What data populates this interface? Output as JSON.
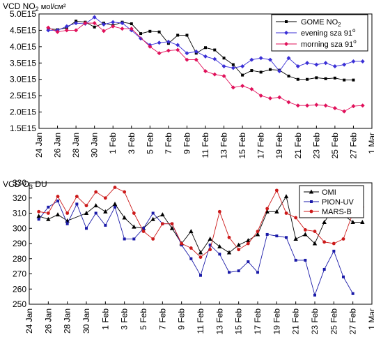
{
  "chart_data": [
    {
      "type": "line",
      "title_pre": "VCD NO",
      "title_sub": "2",
      "title_post": " мol/cм²",
      "ylim": [
        1.5,
        5.0
      ],
      "yticks": [
        "1.5E15",
        "2.0E15",
        "2.5E15",
        "3.0E15",
        "3.5E15",
        "4.0E15",
        "4.5E15",
        "5.0E15"
      ],
      "xlim": [
        0,
        36
      ],
      "xtick_labels": [
        "24 Jan",
        "26 Jan",
        "28 Jan",
        "30 Jan",
        "1 Feb",
        "3 Feb",
        "5 Feb",
        "7 Feb",
        "9 Feb",
        "11 Feb",
        "13 Feb",
        "15 Feb",
        "17 Feb",
        "19 Feb",
        "21 Feb",
        "23 Feb",
        "25 Feb",
        "27 Feb",
        "1 Mar"
      ],
      "legend_position": "top-right",
      "legend": [
        {
          "pre": "GOME NO",
          "sub": "2",
          "post": ""
        },
        {
          "pre": "evening sza 91",
          "sup": "o",
          "post": ""
        },
        {
          "pre": "morning sza 91",
          "sup": "o",
          "post": ""
        }
      ],
      "series": [
        {
          "color": "#000000",
          "marker": "square",
          "x": [
            1,
            2,
            3,
            4,
            5,
            6,
            7,
            8,
            9,
            10,
            11,
            12,
            13,
            14,
            15,
            16,
            17,
            18,
            19,
            20,
            21,
            22,
            23,
            24,
            25,
            26,
            27,
            28,
            29,
            30,
            31,
            32,
            33,
            34
          ],
          "values": [
            4.55,
            4.52,
            4.58,
            4.78,
            4.75,
            4.6,
            4.72,
            4.65,
            4.75,
            4.7,
            4.4,
            4.47,
            4.45,
            4.1,
            4.35,
            4.35,
            3.8,
            3.97,
            3.9,
            3.65,
            3.45,
            3.13,
            3.27,
            3.22,
            3.3,
            3.28,
            3.1,
            3.0,
            3.0,
            3.05,
            3.02,
            3.04,
            2.98,
            2.98
          ]
        },
        {
          "color": "#3a2fd6",
          "marker": "diamond",
          "x": [
            1,
            2,
            3,
            4,
            5,
            6,
            7,
            8,
            9,
            10,
            11,
            12,
            13,
            14,
            15,
            16,
            17,
            18,
            19,
            20,
            21,
            22,
            23,
            24,
            25,
            26,
            27,
            28,
            29,
            30,
            31,
            32,
            33,
            34,
            35
          ],
          "values": [
            4.5,
            4.5,
            4.62,
            4.72,
            4.7,
            4.9,
            4.68,
            4.75,
            4.72,
            4.5,
            4.25,
            4.05,
            4.12,
            4.15,
            4.05,
            3.8,
            3.85,
            3.7,
            3.62,
            3.4,
            3.35,
            3.4,
            3.6,
            3.65,
            3.6,
            3.25,
            3.65,
            3.4,
            3.5,
            3.45,
            3.5,
            3.4,
            3.45,
            3.55,
            3.55
          ]
        },
        {
          "color": "#e0105a",
          "marker": "diamond",
          "x": [
            1,
            2,
            3,
            4,
            5,
            6,
            7,
            8,
            9,
            10,
            12,
            13,
            14,
            15,
            16,
            17,
            18,
            19,
            20,
            21,
            22,
            23,
            24,
            25,
            26,
            27,
            28,
            29,
            30,
            31,
            32,
            33,
            34,
            35
          ],
          "values": [
            4.58,
            4.45,
            4.5,
            4.5,
            4.72,
            4.72,
            4.48,
            4.62,
            4.55,
            4.55,
            4.0,
            3.8,
            3.88,
            3.9,
            3.6,
            3.6,
            3.25,
            3.15,
            3.1,
            2.75,
            2.8,
            2.7,
            2.5,
            2.42,
            2.45,
            2.3,
            2.2,
            2.2,
            2.22,
            2.2,
            2.12,
            2.02,
            2.18,
            2.2
          ]
        }
      ]
    },
    {
      "type": "line",
      "title_pre": "VCD O",
      "title_sub": "3",
      "title_post": " DU",
      "ylim": [
        250,
        330
      ],
      "yticks": [
        "250",
        "260",
        "270",
        "280",
        "290",
        "300",
        "310",
        "320",
        "330"
      ],
      "xlim": [
        0,
        36
      ],
      "xtick_labels": [
        "24 Jan",
        "26 Jan",
        "28 Jan",
        "30 Jan",
        "1 Feb",
        "3 Feb",
        "5 Feb",
        "7 Feb",
        "9 Feb",
        "11 Feb",
        "13 Feb",
        "15 Feb",
        "17 Feb",
        "19 Feb",
        "21 Feb",
        "23 Feb",
        "25 Feb",
        "27 Feb",
        "1 Mar"
      ],
      "legend_position": "top-right",
      "legend": [
        {
          "pre": "OMI"
        },
        {
          "pre": "PION-UV"
        },
        {
          "pre": "MARS-B"
        }
      ],
      "series": [
        {
          "color": "#000000",
          "marker": "triangle",
          "x": [
            1,
            2,
            3,
            4,
            6,
            7,
            8,
            9,
            10,
            11,
            12,
            13,
            14,
            15,
            16,
            17,
            18,
            19,
            20,
            21,
            22,
            23,
            24,
            25,
            26,
            27,
            28,
            29,
            30,
            31,
            32,
            33,
            34,
            35
          ],
          "values": [
            308,
            306,
            309,
            305,
            310,
            315,
            311,
            316,
            307,
            301,
            300,
            306,
            309,
            300,
            290,
            298,
            284,
            293,
            288,
            284,
            289,
            292,
            296,
            311,
            311,
            321,
            293,
            296,
            290,
            304,
            314,
            309,
            304,
            304
          ]
        },
        {
          "color": "#1a1aa8",
          "marker": "square",
          "x": [
            1,
            2,
            3,
            4,
            5,
            6,
            7,
            8,
            9,
            10,
            11,
            12,
            13,
            14,
            15,
            16,
            17,
            18,
            19,
            20,
            21,
            22,
            23,
            24,
            25,
            26,
            27,
            28,
            29,
            30,
            31,
            32,
            33,
            34
          ],
          "values": [
            306,
            314,
            318,
            303,
            316,
            300,
            310,
            302,
            314,
            293,
            293,
            300,
            310,
            303,
            303,
            289,
            280,
            269,
            289,
            283,
            271,
            272,
            278,
            271,
            296,
            295,
            294,
            279,
            279,
            256,
            273,
            285,
            268,
            257
          ]
        },
        {
          "color": "#cc1a1a",
          "marker": "circle",
          "x": [
            1,
            2,
            3,
            4,
            5,
            6,
            7,
            8,
            9,
            10,
            11,
            12,
            13,
            14,
            15,
            16,
            17,
            18,
            19,
            20,
            21,
            22,
            23,
            24,
            25,
            26,
            27,
            28,
            29,
            30,
            31,
            32,
            33,
            34,
            35
          ],
          "values": [
            311,
            310,
            321,
            310,
            321,
            315,
            324,
            320,
            327,
            324,
            310,
            298,
            293,
            303,
            303,
            290,
            287,
            281,
            286,
            311,
            294,
            286,
            290,
            298,
            313,
            325,
            310,
            307,
            299,
            298,
            291,
            290,
            293,
            310,
            314
          ]
        }
      ]
    }
  ]
}
